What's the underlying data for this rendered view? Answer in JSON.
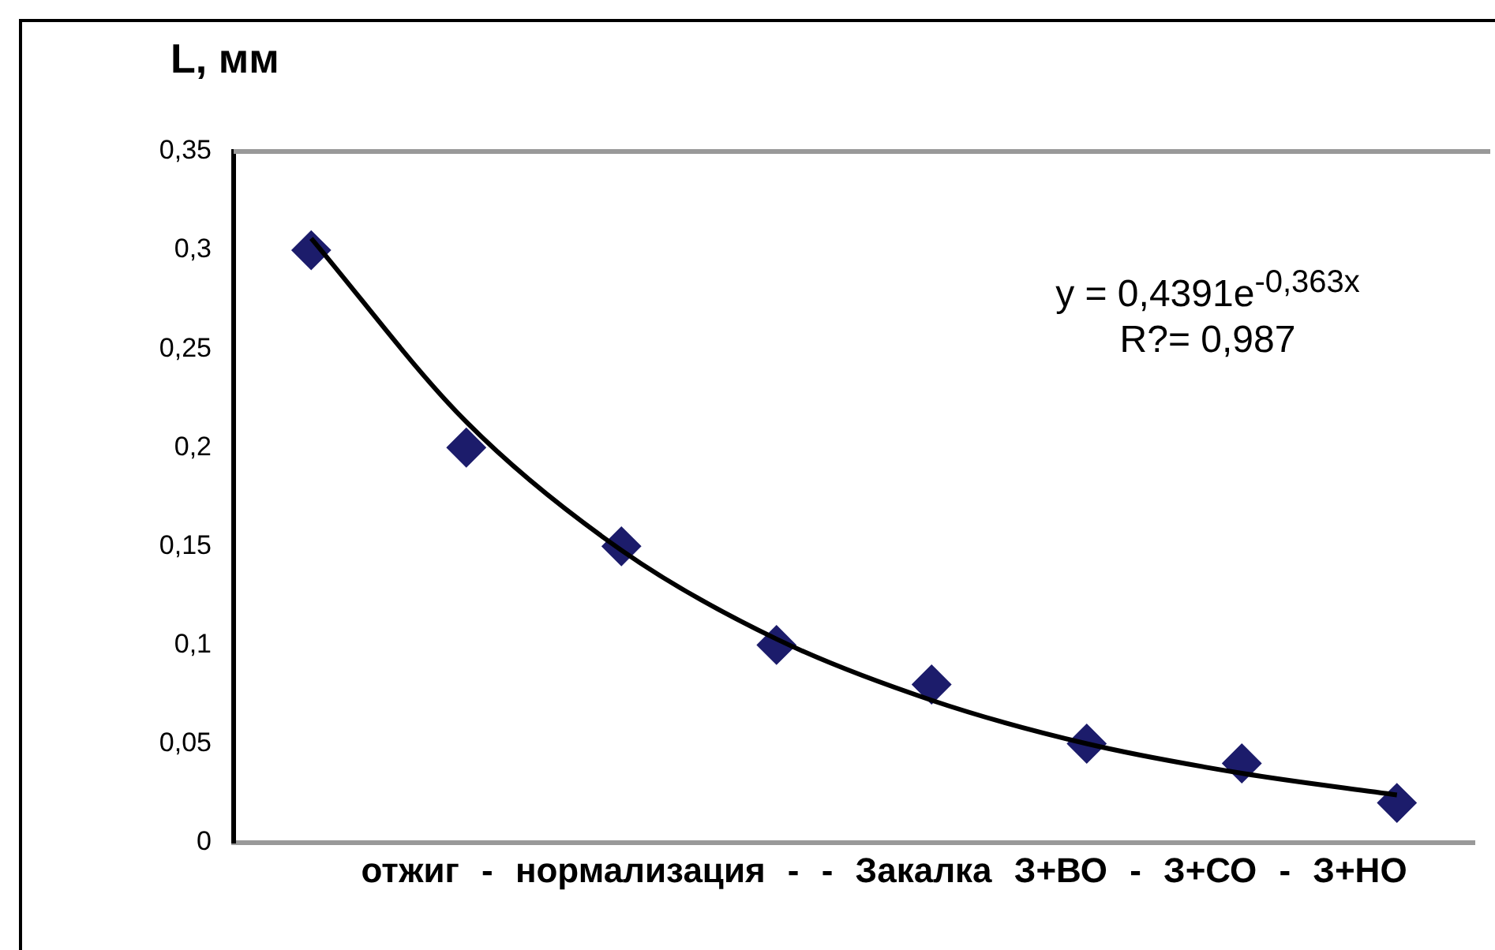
{
  "chart_data": {
    "type": "scatter",
    "ylabel": "L, мм",
    "xlabel": "отжиг - нормализация - - Закалка З+ВО - З+СО - З+НО",
    "categories": [
      null,
      null,
      null,
      null,
      null,
      null,
      null,
      null
    ],
    "series": [
      {
        "color": "#1c1c6b",
        "marker": "diamond",
        "values": [
          0.3,
          0.2,
          0.15,
          0.1,
          0.08,
          0.05,
          0.04,
          0.02
        ]
      },
      {
        "type": "line",
        "color": "#000000",
        "marker": "none",
        "values": [
          0.306,
          0.213,
          0.148,
          0.103,
          0.072,
          0.05,
          0.035,
          0.024
        ]
      }
    ],
    "ylim": [
      0,
      0.35
    ],
    "yticks": [
      0,
      {
        "value": 0.05,
        "label": "0,05"
      },
      {
        "value": 0.1,
        "label": "0,1"
      },
      {
        "value": 0.15,
        "label": "0,15"
      },
      {
        "value": 0.2,
        "label": "0,2"
      },
      {
        "value": 0.25,
        "label": "0,25"
      },
      {
        "value": 0.3,
        "label": "0,3"
      },
      {
        "value": 0.35,
        "label": "0,35"
      }
    ],
    "grid": false,
    "legend": false,
    "annotations": [
      "y = 0,4391e$^{-0,363x}$",
      "R?= 0,987"
    ]
  }
}
